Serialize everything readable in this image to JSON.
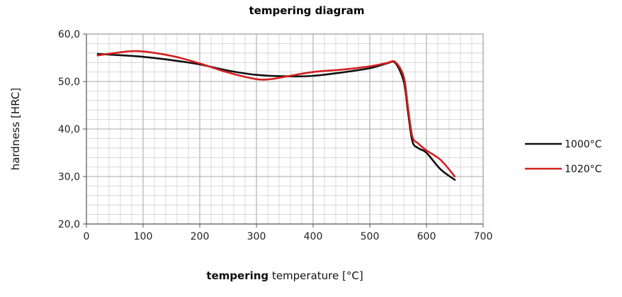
{
  "chart_data": {
    "type": "line",
    "title": "tempering diagram",
    "xlabel_bold": "tempering",
    "xlabel_rest": "temperature [°C]",
    "ylabel": "hardness [HRC]",
    "xlim": [
      0,
      700
    ],
    "ylim": [
      20,
      60
    ],
    "x_ticks": [
      0,
      100,
      200,
      300,
      400,
      500,
      600,
      700
    ],
    "x_tick_labels": [
      "0",
      "100",
      "200",
      "300",
      "400",
      "500",
      "600",
      "700"
    ],
    "y_ticks": [
      20,
      30,
      40,
      50,
      60
    ],
    "y_tick_labels": [
      "20,0",
      "30,0",
      "40,0",
      "50,0",
      "60,0"
    ],
    "grid": true,
    "legend_position": "right",
    "series": [
      {
        "name": "1000°C",
        "color": "#111111",
        "points": [
          [
            20,
            55.8
          ],
          [
            50,
            55.6
          ],
          [
            100,
            55.2
          ],
          [
            150,
            54.5
          ],
          [
            200,
            53.6
          ],
          [
            250,
            52.3
          ],
          [
            300,
            51.4
          ],
          [
            350,
            51.1
          ],
          [
            400,
            51.2
          ],
          [
            450,
            51.9
          ],
          [
            500,
            52.8
          ],
          [
            530,
            53.8
          ],
          [
            545,
            53.9
          ],
          [
            560,
            50.0
          ],
          [
            567,
            44.0
          ],
          [
            575,
            37.5
          ],
          [
            585,
            36.0
          ],
          [
            600,
            35.0
          ],
          [
            625,
            31.5
          ],
          [
            650,
            29.3
          ]
        ]
      },
      {
        "name": "1020°C",
        "color": "#d42020",
        "points": [
          [
            20,
            55.5
          ],
          [
            50,
            56.0
          ],
          [
            90,
            56.4
          ],
          [
            150,
            55.4
          ],
          [
            200,
            53.8
          ],
          [
            250,
            51.9
          ],
          [
            300,
            50.5
          ],
          [
            325,
            50.5
          ],
          [
            350,
            51.0
          ],
          [
            400,
            52.0
          ],
          [
            450,
            52.5
          ],
          [
            500,
            53.2
          ],
          [
            530,
            53.9
          ],
          [
            545,
            54.1
          ],
          [
            560,
            51.0
          ],
          [
            567,
            45.0
          ],
          [
            575,
            38.5
          ],
          [
            585,
            37.0
          ],
          [
            600,
            35.5
          ],
          [
            625,
            33.5
          ],
          [
            650,
            30.0
          ]
        ]
      }
    ]
  }
}
